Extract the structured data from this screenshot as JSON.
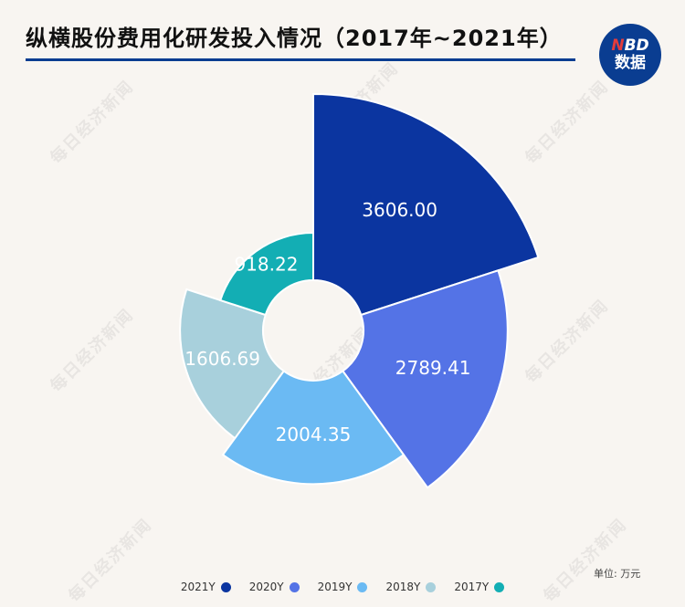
{
  "header": {
    "title": "纵横股份费用化研发投入情况（2017年~2021年）",
    "logo_line1_red": "N",
    "logo_line1_rest": "BD",
    "logo_line2": "数据",
    "watermark_text": "每日经济新闻"
  },
  "colors": {
    "brand": "#0a3d91",
    "background": "#f8f5f1"
  },
  "unit": "单位: 万元",
  "chart_data": {
    "type": "pie",
    "subtype": "nightingale-rose",
    "title": "纵横股份费用化研发投入情况（2017年~2021年）",
    "unit": "单位: 万元",
    "legend_position": "bottom",
    "slices": [
      {
        "name": "2021Y",
        "value": 3606.0,
        "label": "3606.00",
        "color": "#0b35a0"
      },
      {
        "name": "2020Y",
        "value": 2789.41,
        "label": "2789.41",
        "color": "#5473e6"
      },
      {
        "name": "2019Y",
        "value": 2004.35,
        "label": "2004.35",
        "color": "#6bbaf3"
      },
      {
        "name": "2018Y",
        "value": 1606.69,
        "label": "1606.69",
        "color": "#a8d0dc"
      },
      {
        "name": "2017Y",
        "value": 918.22,
        "label": "918.22",
        "color": "#13aeb4"
      }
    ]
  }
}
